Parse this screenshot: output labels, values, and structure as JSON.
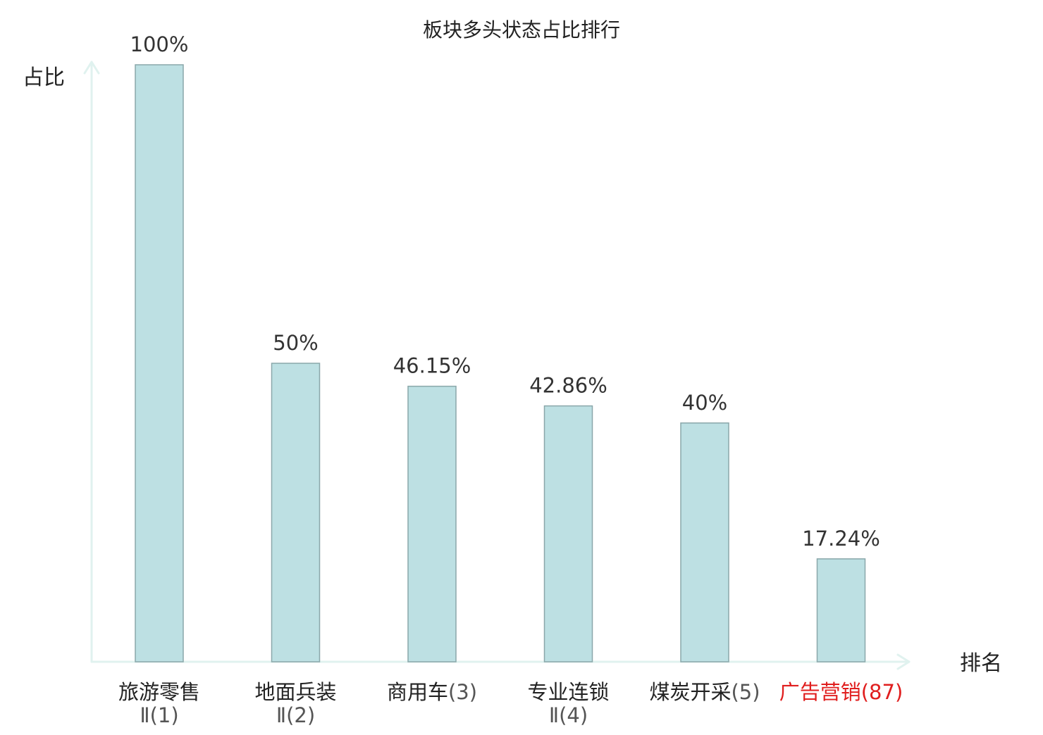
{
  "chart_data": {
    "type": "bar",
    "title": "板块多头状态占比排行",
    "ylabel": "占比",
    "xlabel": "排名",
    "ylim": [
      0,
      100
    ],
    "grid": false,
    "legend": "none",
    "categories": [
      {
        "name": "旅游零售",
        "rank": "Ⅱ(1)",
        "highlight": false
      },
      {
        "name": "地面兵装",
        "rank": "Ⅱ(2)",
        "highlight": false
      },
      {
        "name": "商用车",
        "rank": "(3)",
        "highlight": false
      },
      {
        "name": "专业连锁",
        "rank": "Ⅱ(4)",
        "highlight": false
      },
      {
        "name": "煤炭开采",
        "rank": "(5)",
        "highlight": false
      },
      {
        "name": "广告营销",
        "rank": "(87)",
        "highlight": true
      }
    ],
    "values": [
      100,
      50,
      46.15,
      42.86,
      40,
      17.24
    ],
    "value_labels": [
      "100%",
      "50%",
      "46.15%",
      "42.86%",
      "40%",
      "17.24%"
    ]
  },
  "colors": {
    "bar_fill": "#bde0e3",
    "bar_stroke": "#8aa7aa",
    "axis": "#e0f2ef",
    "highlight": "#e01e1e",
    "label_main": "#222222",
    "label_sub": "#555555"
  }
}
